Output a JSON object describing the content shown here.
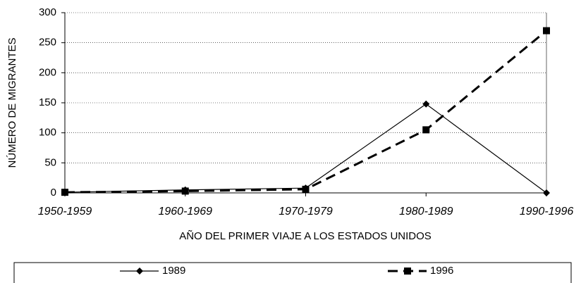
{
  "chart_data": {
    "type": "line",
    "xlabel": "AÑO DEL PRIMER VIAJE A LOS ESTADOS UNIDOS",
    "ylabel": "NÚMERO DE MIGRANTES",
    "categories": [
      "1950-1959",
      "1960-1969",
      "1970-1979",
      "1980-1989",
      "1990-1996"
    ],
    "series": [
      {
        "name": "1989",
        "color": "#000000",
        "style": "solid",
        "marker": "diamond",
        "values": [
          1,
          5,
          8,
          148,
          0
        ]
      },
      {
        "name": "1996",
        "color": "#000000",
        "style": "dashed",
        "marker": "square",
        "values": [
          1,
          3,
          6,
          105,
          270
        ]
      }
    ],
    "ylim": [
      0,
      300
    ],
    "yticks": [
      0,
      50,
      100,
      150,
      200,
      250,
      300
    ],
    "grid": true,
    "legend": "bottom"
  }
}
